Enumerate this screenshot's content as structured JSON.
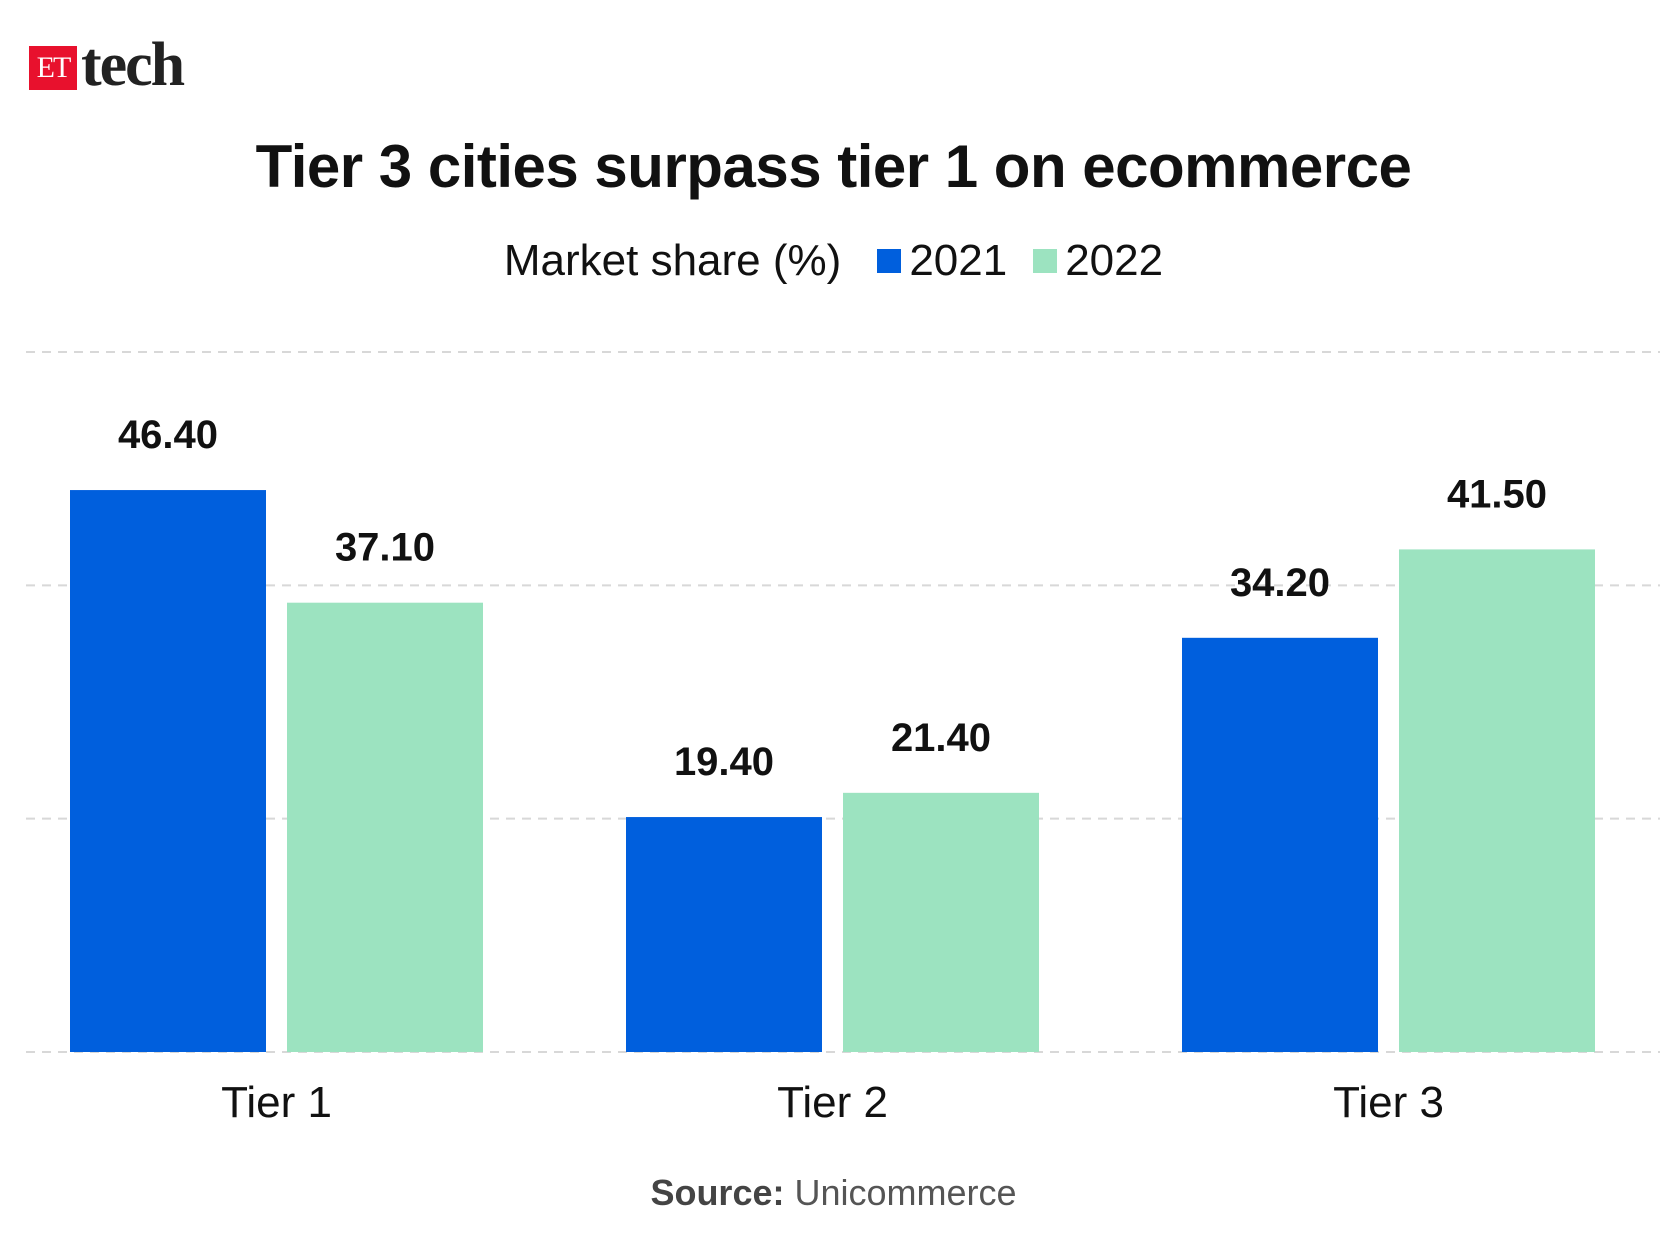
{
  "logo": {
    "et": "ET",
    "tech": "tech"
  },
  "chart_data": {
    "type": "bar",
    "title": "Tier 3 cities surpass tier 1 on ecommerce",
    "subtitle": "Market share (%)",
    "categories": [
      "Tier 1",
      "Tier 2",
      "Tier 3"
    ],
    "series": [
      {
        "name": "2021",
        "color": "#005fdd",
        "values": [
          46.4,
          19.4,
          34.2
        ],
        "labels": [
          "46.40",
          "19.40",
          "34.20"
        ]
      },
      {
        "name": "2022",
        "color": "#9ce3c0",
        "values": [
          37.1,
          21.4,
          41.5
        ],
        "labels": [
          "37.10",
          "21.40",
          "41.50"
        ]
      }
    ],
    "ylim": [
      0,
      57.8
    ],
    "grid": true,
    "legend": "top-center",
    "source_label": "Source:",
    "source": "Unicommerce"
  }
}
